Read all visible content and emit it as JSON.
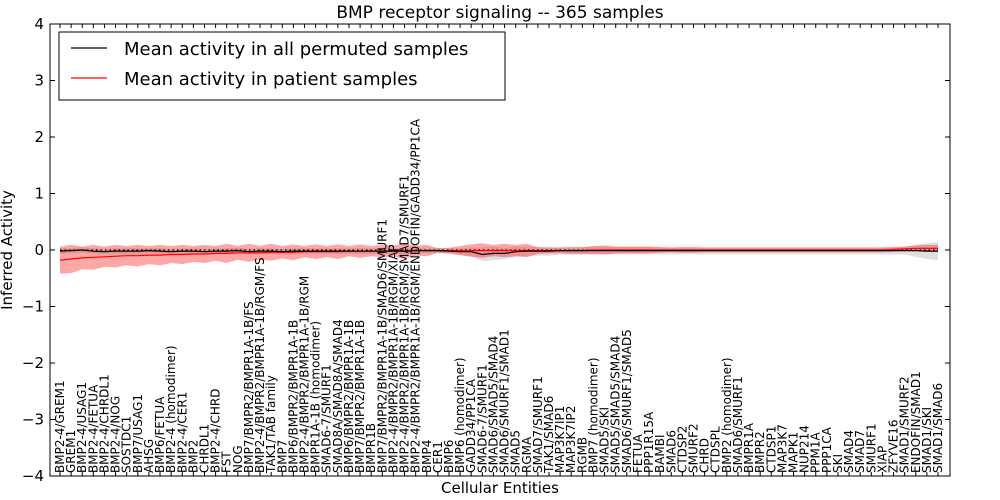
{
  "chart_data": {
    "type": "line",
    "title": "BMP receptor signaling -- 365 samples",
    "xlabel": "Cellular Entities",
    "ylabel": "Inferred Activity",
    "ylim": [
      -4,
      4
    ],
    "yticks": [
      "4",
      "3",
      "2",
      "1",
      "0",
      "−1",
      "−2",
      "−3",
      "−4"
    ],
    "ytick_values": [
      4,
      3,
      2,
      1,
      0,
      -1,
      -2,
      -3,
      -4
    ],
    "grid": false,
    "legend_position": "top-left",
    "categories": [
      "BMP2-4/GREM1",
      "GREM1",
      "BMP2-4/USAG1",
      "BMP2-4/FETUA",
      "BMP2-4/CHRDL1",
      "BMP2-4/NOG",
      "SOSTDC1",
      "BMP7/USAG1",
      "AHSG",
      "BMP6/FETUA",
      "BMP2-4 (homodimer)",
      "BMP2-4/CER1",
      "BMP2",
      "CHRDL1",
      "BMP2-4/CHRD",
      "FST",
      "NOG",
      "BMP7/BMPR2/BMPR1A-1B/FS",
      "BMP2-4/BMPR2/BMPR1A-1B/RGM/FS",
      "TAK1/TAB family",
      "BMP7",
      "BMP6/BMPR2/BMPR1A-1B",
      "BMP2-4/BMPR2/BMPR1A-1B/RGM",
      "BMPR1A-1B (homodimer)",
      "SMAD6-7/SMURF1",
      "SMAD8A/SMAD8A/SMAD4",
      "BMP6/BMPR2/BMPR1A-1B",
      "BMP7/BMPR2/BMPR1A-1B",
      "BMPR1B",
      "BMP7/BMPR2/BMPR1A-1B/SMAD6/SMURF1",
      "BMP2-4/BMPR2/BMPR1A-1B/RGM/XIAP",
      "BMP2-4/BMPR2/BMPR1A-1B/RGM/SMAD7/SMURF1",
      "BMP2-4/BMPR2/BMPR1A-1B/RGM/ENDOFIN/GADD34/PP1CA",
      "BMP4",
      "CER1",
      "BMP6",
      "BMP6 (homodimer)",
      "GADD34/PP1CA",
      "SMAD6-7/SMURF1",
      "SMAD6/SMAD5/SMAD4",
      "SMAD6/SMURF1/SMAD1",
      "SMAD5",
      "RGMA",
      "SMAD7/SMURF1",
      "TAK1/SMAD6",
      "MAP3K7IP1",
      "MAP3K7IP2",
      "RGMB",
      "BMP7 (homodimer)",
      "SMAD5/SKI",
      "SMAD5/SMAD5/SMAD4",
      "SMAD6/SMURF1/SMAD5",
      "FETUA",
      "PPP1R15A",
      "BAMBI",
      "SMAD6",
      "CTDSP2",
      "SMURF2",
      "CHRD",
      "CTDSPL",
      "BMP2 (homodimer)",
      "SMAD6/SMURF1",
      "BMPR1A",
      "BMPR2",
      "CTDSP1",
      "MAP3K7",
      "MAPK1",
      "NUP214",
      "PPM1A",
      "PPP1CA",
      "SKI",
      "SMAD4",
      "SMAD7",
      "SMURF1",
      "XIAP",
      "ZFYVE16",
      "SMAD1/SMURF2",
      "ENDOFIN/SMAD1",
      "SMAD1/SKI",
      "SMAD1/SMAD6"
    ],
    "series": [
      {
        "name": "Mean activity in all permuted samples",
        "color": "#000000",
        "values": [
          -0.02,
          -0.01,
          0.0,
          -0.02,
          -0.03,
          -0.02,
          -0.02,
          -0.02,
          -0.01,
          -0.02,
          -0.03,
          -0.02,
          -0.02,
          -0.03,
          -0.02,
          -0.02,
          -0.01,
          -0.03,
          -0.02,
          -0.02,
          -0.03,
          -0.02,
          -0.02,
          -0.02,
          -0.02,
          -0.02,
          -0.02,
          -0.02,
          -0.02,
          -0.02,
          -0.02,
          -0.02,
          -0.01,
          -0.01,
          -0.01,
          -0.02,
          -0.03,
          -0.03,
          -0.08,
          -0.06,
          -0.06,
          -0.03,
          -0.02,
          -0.02,
          -0.02,
          -0.01,
          -0.01,
          -0.01,
          -0.01,
          -0.01,
          -0.01,
          -0.01,
          -0.01,
          -0.01,
          -0.01,
          -0.01,
          -0.01,
          -0.01,
          -0.01,
          -0.01,
          -0.01,
          -0.01,
          -0.01,
          -0.01,
          -0.01,
          -0.01,
          -0.01,
          -0.01,
          -0.01,
          -0.01,
          -0.01,
          -0.01,
          -0.01,
          -0.01,
          -0.01,
          -0.01,
          -0.01,
          -0.01,
          -0.02,
          -0.02
        ],
        "spread": [
          0.05,
          0.05,
          0.05,
          0.05,
          0.05,
          0.05,
          0.05,
          0.05,
          0.05,
          0.05,
          0.05,
          0.05,
          0.05,
          0.05,
          0.05,
          0.05,
          0.05,
          0.05,
          0.05,
          0.05,
          0.05,
          0.05,
          0.05,
          0.05,
          0.05,
          0.05,
          0.05,
          0.05,
          0.05,
          0.05,
          0.05,
          0.05,
          0.05,
          0.05,
          0.05,
          0.05,
          0.06,
          0.08,
          0.12,
          0.12,
          0.1,
          0.09,
          0.08,
          0.08,
          0.08,
          0.07,
          0.07,
          0.07,
          0.07,
          0.07,
          0.07,
          0.07,
          0.07,
          0.07,
          0.07,
          0.07,
          0.07,
          0.07,
          0.07,
          0.07,
          0.07,
          0.07,
          0.07,
          0.07,
          0.07,
          0.07,
          0.07,
          0.07,
          0.07,
          0.07,
          0.07,
          0.07,
          0.07,
          0.07,
          0.07,
          0.07,
          0.07,
          0.11,
          0.14,
          0.16
        ]
      },
      {
        "name": "Mean activity in patient samples",
        "color": "#ff0000",
        "values": [
          -0.18,
          -0.16,
          -0.14,
          -0.13,
          -0.12,
          -0.11,
          -0.1,
          -0.1,
          -0.09,
          -0.09,
          -0.08,
          -0.08,
          -0.07,
          -0.07,
          -0.06,
          -0.06,
          -0.05,
          -0.05,
          -0.05,
          -0.04,
          -0.04,
          -0.04,
          -0.03,
          -0.03,
          -0.03,
          -0.03,
          -0.02,
          -0.02,
          -0.02,
          -0.02,
          -0.02,
          -0.02,
          -0.01,
          -0.01,
          -0.01,
          -0.01,
          -0.01,
          -0.01,
          -0.01,
          -0.01,
          -0.01,
          -0.01,
          -0.01,
          -0.01,
          -0.01,
          -0.01,
          -0.01,
          -0.01,
          0.0,
          0.0,
          0.0,
          0.0,
          0.0,
          0.0,
          0.0,
          0.0,
          0.0,
          0.0,
          0.0,
          0.0,
          0.0,
          0.0,
          0.0,
          0.0,
          0.0,
          0.0,
          0.0,
          0.0,
          0.0,
          0.0,
          0.0,
          0.0,
          0.0,
          0.0,
          0.0,
          0.01,
          0.02,
          0.03,
          0.03,
          0.03
        ],
        "spread": [
          0.24,
          0.25,
          0.2,
          0.22,
          0.18,
          0.2,
          0.17,
          0.19,
          0.16,
          0.18,
          0.15,
          0.17,
          0.14,
          0.16,
          0.13,
          0.17,
          0.12,
          0.16,
          0.12,
          0.15,
          0.11,
          0.14,
          0.1,
          0.13,
          0.1,
          0.13,
          0.09,
          0.12,
          0.09,
          0.11,
          0.1,
          0.13,
          0.09,
          0.1,
          0.04,
          0.05,
          0.08,
          0.11,
          0.13,
          0.1,
          0.12,
          0.1,
          0.12,
          0.06,
          0.05,
          0.05,
          0.06,
          0.06,
          0.07,
          0.08,
          0.06,
          0.06,
          0.06,
          0.06,
          0.05,
          0.04,
          0.05,
          0.05,
          0.04,
          0.04,
          0.04,
          0.04,
          0.04,
          0.04,
          0.04,
          0.04,
          0.04,
          0.04,
          0.04,
          0.04,
          0.04,
          0.04,
          0.04,
          0.04,
          0.04,
          0.04,
          0.04,
          0.05,
          0.06,
          0.06
        ]
      }
    ],
    "zero_reference": {
      "style": "dotted",
      "color": "#000000",
      "value": 0
    },
    "band_colors": {
      "patient": "#ff0000",
      "permuted": "#bbbbbb"
    }
  }
}
